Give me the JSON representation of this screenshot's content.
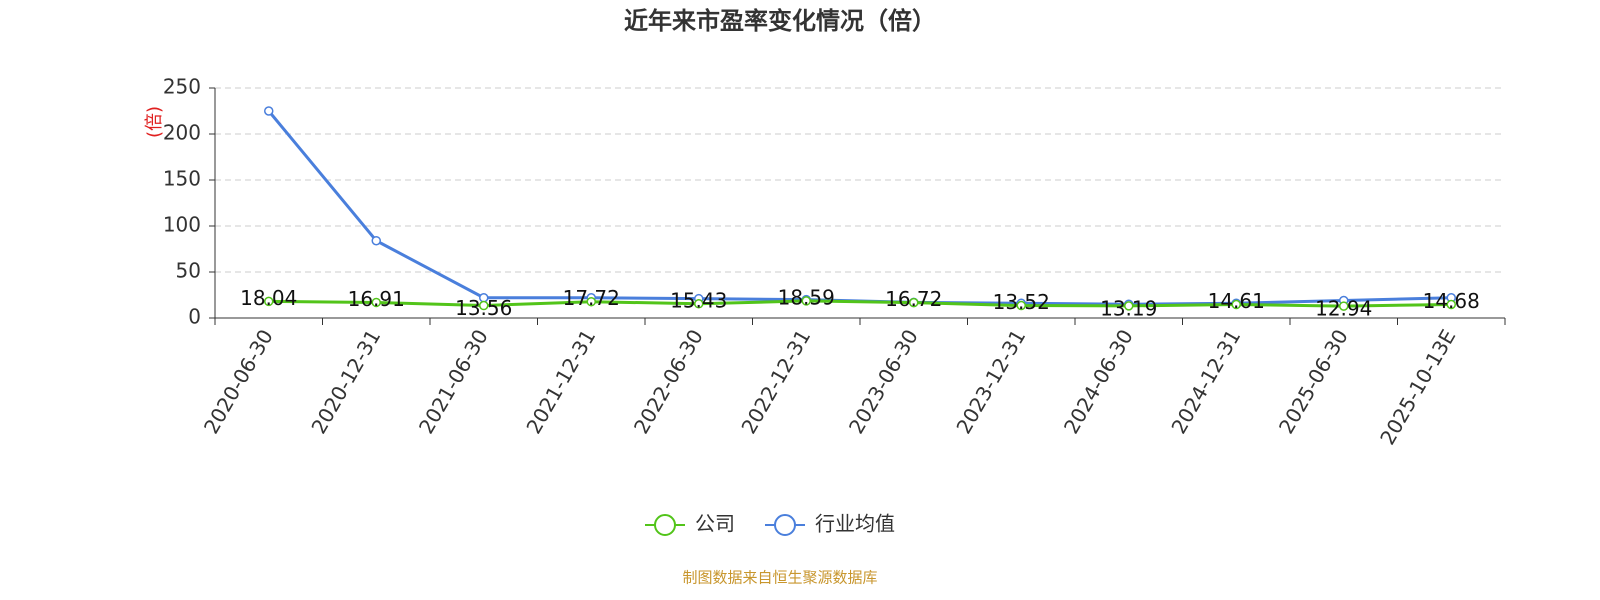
{
  "chart_data": {
    "type": "line",
    "title": "近年来市盈率变化情况（倍）",
    "y_label": "(倍)",
    "categories": [
      "2020-06-30",
      "2020-12-31",
      "2021-06-30",
      "2021-12-31",
      "2022-06-30",
      "2022-12-31",
      "2023-06-30",
      "2023-12-31",
      "2024-06-30",
      "2024-12-31",
      "2025-06-30",
      "2025-10-13E"
    ],
    "series": [
      {
        "name": "公司",
        "color": "#52c41a",
        "values": [
          18.04,
          16.91,
          13.56,
          17.72,
          15.43,
          18.59,
          16.72,
          13.52,
          13.19,
          14.61,
          12.94,
          14.68
        ]
      },
      {
        "name": "行业均值",
        "color": "#4a7fdc",
        "values": [
          225,
          84,
          22,
          22,
          21,
          20,
          17,
          16,
          15,
          16,
          19,
          22
        ]
      }
    ],
    "ylim": [
      0,
      250
    ],
    "yticks": [
      0,
      50,
      100,
      150,
      200,
      250
    ],
    "grid": true,
    "source": "制图数据来自恒生聚源数据库"
  }
}
